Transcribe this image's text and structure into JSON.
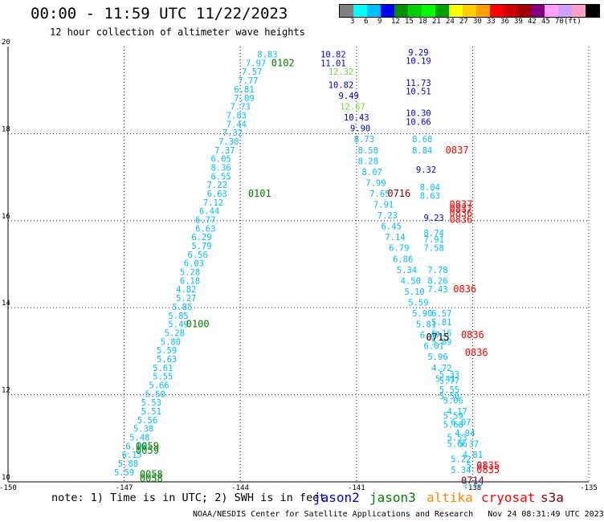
{
  "header": {
    "title": "00:00 - 11:59 UTC 11/22/2023",
    "subtitle": "12 hour collection of altimeter wave heights"
  },
  "color_scale": {
    "colors": [
      "#808080",
      "#00ffff",
      "#00bfff",
      "#0000ff",
      "#008f00",
      "#00cf00",
      "#00ff00",
      "#00a000",
      "#ffff00",
      "#ffcf00",
      "#ff9f00",
      "#ff0000",
      "#cf0000",
      "#a00000",
      "#800080",
      "#ff9fff",
      "#cfa0ff",
      "#ffa0c8",
      "#000000"
    ],
    "labels": [
      "3",
      "6",
      "9",
      "12",
      "15",
      "18",
      "21",
      "24",
      "27",
      "30",
      "33",
      "36",
      "39",
      "42",
      "45",
      "70",
      "(ft)"
    ]
  },
  "note": "note: 1) Time is in UTC; 2) SWH is in feet",
  "legend": [
    {
      "label": "jason2",
      "color": "#0000cc"
    },
    {
      "label": "jason3",
      "color": "#008000"
    },
    {
      "label": "altika",
      "color": "#ff8c00"
    },
    {
      "label": "cryosat",
      "color": "#ff0000"
    },
    {
      "label": "s3a",
      "color": "#8b0000"
    }
  ],
  "footer": "NOAA/NESDIS Center for Satellite Applications and Research   Nov 24 08:31:49 UTC 2023",
  "chart_data": {
    "type": "scatter",
    "title": "00:00 - 11:59 UTC 11/22/2023",
    "subtitle": "12 hour collection of altimeter wave heights",
    "xlim": [
      -150,
      -135
    ],
    "ylim": [
      10,
      20
    ],
    "x_ticks": [
      "-150",
      "-147",
      "-144",
      "-141",
      "-138",
      "-135"
    ],
    "y_ticks": [
      "10",
      "12",
      "14",
      "16",
      "18",
      "20"
    ],
    "grid": true,
    "wave_height_labels": [
      {
        "x": -143.3,
        "y": 19.75,
        "text": "8.83",
        "color": "#00bfff"
      },
      {
        "x": -143.6,
        "y": 19.55,
        "text": "7.97",
        "color": "#00bfff"
      },
      {
        "x": -143.7,
        "y": 19.35,
        "text": "7.57",
        "color": "#00bfff"
      },
      {
        "x": -143.8,
        "y": 19.15,
        "text": "7.77",
        "color": "#00bfff"
      },
      {
        "x": -143.9,
        "y": 18.95,
        "text": "6.81",
        "color": "#00bfff"
      },
      {
        "x": -143.9,
        "y": 18.75,
        "text": "7.09",
        "color": "#00bfff"
      },
      {
        "x": -144.0,
        "y": 18.55,
        "text": "7.73",
        "color": "#00bfff"
      },
      {
        "x": -144.1,
        "y": 18.35,
        "text": "7.83",
        "color": "#00bfff"
      },
      {
        "x": -144.1,
        "y": 18.15,
        "text": "7.44",
        "color": "#00bfff"
      },
      {
        "x": -144.2,
        "y": 17.95,
        "text": "7.32",
        "color": "#00bfff"
      },
      {
        "x": -144.3,
        "y": 17.75,
        "text": "7.30",
        "color": "#00bfff"
      },
      {
        "x": -144.4,
        "y": 17.55,
        "text": "7.37",
        "color": "#00bfff"
      },
      {
        "x": -144.5,
        "y": 17.35,
        "text": "6.05",
        "color": "#00bfff"
      },
      {
        "x": -144.5,
        "y": 17.15,
        "text": "8.36",
        "color": "#00bfff"
      },
      {
        "x": -144.5,
        "y": 16.95,
        "text": "6.55",
        "color": "#00bfff"
      },
      {
        "x": -144.6,
        "y": 16.75,
        "text": "7.22",
        "color": "#00bfff"
      },
      {
        "x": -144.6,
        "y": 16.55,
        "text": "6.63",
        "color": "#00bfff"
      },
      {
        "x": -144.7,
        "y": 16.35,
        "text": "7.12",
        "color": "#00bfff"
      },
      {
        "x": -144.8,
        "y": 16.15,
        "text": "6.44",
        "color": "#00bfff"
      },
      {
        "x": -144.9,
        "y": 15.95,
        "text": "6.77",
        "color": "#00bfff"
      },
      {
        "x": -144.9,
        "y": 15.75,
        "text": "6.63",
        "color": "#00bfff"
      },
      {
        "x": -145.0,
        "y": 15.55,
        "text": "6.29",
        "color": "#00bfff"
      },
      {
        "x": -145.0,
        "y": 15.35,
        "text": "5.79",
        "color": "#00bfff"
      },
      {
        "x": -145.1,
        "y": 15.15,
        "text": "6.56",
        "color": "#00bfff"
      },
      {
        "x": -145.2,
        "y": 14.95,
        "text": "6.03",
        "color": "#00bfff"
      },
      {
        "x": -145.3,
        "y": 14.75,
        "text": "5.28",
        "color": "#00bfff"
      },
      {
        "x": -145.3,
        "y": 14.55,
        "text": "6.18",
        "color": "#00bfff"
      },
      {
        "x": -145.4,
        "y": 14.35,
        "text": "4.82",
        "color": "#00bfff"
      },
      {
        "x": -145.4,
        "y": 14.15,
        "text": "5.27",
        "color": "#00bfff"
      },
      {
        "x": -145.5,
        "y": 13.95,
        "text": "5.85",
        "color": "#00bfff"
      },
      {
        "x": -145.6,
        "y": 13.75,
        "text": "5.85",
        "color": "#00bfff"
      },
      {
        "x": -145.6,
        "y": 13.55,
        "text": "5.49",
        "color": "#00bfff"
      },
      {
        "x": -145.7,
        "y": 13.35,
        "text": "5.28",
        "color": "#00bfff"
      },
      {
        "x": -145.8,
        "y": 13.15,
        "text": "5.80",
        "color": "#00bfff"
      },
      {
        "x": -145.9,
        "y": 12.95,
        "text": "5.59",
        "color": "#00bfff"
      },
      {
        "x": -145.9,
        "y": 12.75,
        "text": "5.63",
        "color": "#00bfff"
      },
      {
        "x": -146.0,
        "y": 12.55,
        "text": "5.61",
        "color": "#00bfff"
      },
      {
        "x": -146.0,
        "y": 12.35,
        "text": "5.55",
        "color": "#00bfff"
      },
      {
        "x": -146.1,
        "y": 12.15,
        "text": "5.66",
        "color": "#00bfff"
      },
      {
        "x": -146.2,
        "y": 11.95,
        "text": "5.50",
        "color": "#00bfff"
      },
      {
        "x": -146.3,
        "y": 11.75,
        "text": "5.53",
        "color": "#00bfff"
      },
      {
        "x": -146.3,
        "y": 11.55,
        "text": "5.51",
        "color": "#00bfff"
      },
      {
        "x": -146.4,
        "y": 11.35,
        "text": "5.56",
        "color": "#00bfff"
      },
      {
        "x": -146.5,
        "y": 11.15,
        "text": "5.38",
        "color": "#00bfff"
      },
      {
        "x": -146.6,
        "y": 10.95,
        "text": "5.48",
        "color": "#00bfff"
      },
      {
        "x": -146.7,
        "y": 10.75,
        "text": "6.16",
        "color": "#00bfff"
      },
      {
        "x": -146.8,
        "y": 10.55,
        "text": "6.15",
        "color": "#00bfff"
      },
      {
        "x": -146.9,
        "y": 10.35,
        "text": "5.88",
        "color": "#00bfff"
      },
      {
        "x": -147.0,
        "y": 10.15,
        "text": "5.59",
        "color": "#00bfff"
      },
      {
        "x": -141.6,
        "y": 19.75,
        "text": "10.82",
        "color": "#0000cc"
      },
      {
        "x": -141.6,
        "y": 19.55,
        "text": "11.01",
        "color": "#0000cc"
      },
      {
        "x": -141.4,
        "y": 19.35,
        "text": "12.32",
        "color": "#66dd33"
      },
      {
        "x": -141.4,
        "y": 19.05,
        "text": "10.82",
        "color": "#0000cc"
      },
      {
        "x": -141.2,
        "y": 18.8,
        "text": "9.49",
        "color": "#0000cc"
      },
      {
        "x": -141.1,
        "y": 18.55,
        "text": "12.67",
        "color": "#66dd33"
      },
      {
        "x": -141.0,
        "y": 18.3,
        "text": "10.43",
        "color": "#0000cc"
      },
      {
        "x": -140.9,
        "y": 18.05,
        "text": "9.90",
        "color": "#0000cc"
      },
      {
        "x": -140.8,
        "y": 17.8,
        "text": "8.73",
        "color": "#00bfff"
      },
      {
        "x": -140.7,
        "y": 17.55,
        "text": "8.58",
        "color": "#00bfff"
      },
      {
        "x": -140.7,
        "y": 17.3,
        "text": "8.28",
        "color": "#00bfff"
      },
      {
        "x": -140.6,
        "y": 17.05,
        "text": "8.07",
        "color": "#00bfff"
      },
      {
        "x": -140.5,
        "y": 16.8,
        "text": "7.99",
        "color": "#00bfff"
      },
      {
        "x": -140.4,
        "y": 16.55,
        "text": "7.65",
        "color": "#00bfff"
      },
      {
        "x": -140.3,
        "y": 16.3,
        "text": "7.91",
        "color": "#00bfff"
      },
      {
        "x": -140.2,
        "y": 16.05,
        "text": "7.23",
        "color": "#00bfff"
      },
      {
        "x": -140.1,
        "y": 15.8,
        "text": "6.45",
        "color": "#00bfff"
      },
      {
        "x": -140.0,
        "y": 15.55,
        "text": "7.14",
        "color": "#00bfff"
      },
      {
        "x": -139.9,
        "y": 15.3,
        "text": "6.79",
        "color": "#00bfff"
      },
      {
        "x": -139.8,
        "y": 15.05,
        "text": "6.86",
        "color": "#00bfff"
      },
      {
        "x": -139.7,
        "y": 14.8,
        "text": "5.34",
        "color": "#00bfff"
      },
      {
        "x": -139.6,
        "y": 14.55,
        "text": "4.50",
        "color": "#00bfff"
      },
      {
        "x": -139.5,
        "y": 14.3,
        "text": "5.10",
        "color": "#00bfff"
      },
      {
        "x": -139.4,
        "y": 14.05,
        "text": "5.59",
        "color": "#00bfff"
      },
      {
        "x": -139.3,
        "y": 13.8,
        "text": "5.90",
        "color": "#00bfff"
      },
      {
        "x": -139.2,
        "y": 13.55,
        "text": "5.81",
        "color": "#00bfff"
      },
      {
        "x": -139.1,
        "y": 13.3,
        "text": "6.47",
        "color": "#00bfff"
      },
      {
        "x": -139.0,
        "y": 13.05,
        "text": "6.01",
        "color": "#00bfff"
      },
      {
        "x": -138.9,
        "y": 12.8,
        "text": "5.96",
        "color": "#00bfff"
      },
      {
        "x": -138.8,
        "y": 12.55,
        "text": "4.72",
        "color": "#00bfff"
      },
      {
        "x": -138.7,
        "y": 12.3,
        "text": "5.41",
        "color": "#00bfff"
      },
      {
        "x": -138.6,
        "y": 12.05,
        "text": "5.55",
        "color": "#00bfff"
      },
      {
        "x": -138.5,
        "y": 11.8,
        "text": "5.06",
        "color": "#00bfff"
      },
      {
        "x": -138.4,
        "y": 11.55,
        "text": "4.17",
        "color": "#00bfff"
      },
      {
        "x": -138.3,
        "y": 11.3,
        "text": "6.07",
        "color": "#00bfff"
      },
      {
        "x": -138.2,
        "y": 11.05,
        "text": "4.94",
        "color": "#00bfff"
      },
      {
        "x": -138.1,
        "y": 10.8,
        "text": "5.37",
        "color": "#00bfff"
      },
      {
        "x": -138.0,
        "y": 10.55,
        "text": "4.81",
        "color": "#00bfff"
      },
      {
        "x": -137.9,
        "y": 10.3,
        "text": "5.07",
        "color": "#00bfff"
      },
      {
        "x": -139.4,
        "y": 19.8,
        "text": "9.29",
        "color": "#0000cc"
      },
      {
        "x": -139.4,
        "y": 19.6,
        "text": "10.19",
        "color": "#0000cc"
      },
      {
        "x": -139.4,
        "y": 19.1,
        "text": "11.73",
        "color": "#0000cc"
      },
      {
        "x": -139.4,
        "y": 18.9,
        "text": "10.51",
        "color": "#0000cc"
      },
      {
        "x": -139.4,
        "y": 18.4,
        "text": "10.30",
        "color": "#0000cc"
      },
      {
        "x": -139.4,
        "y": 18.2,
        "text": "10.66",
        "color": "#0000cc"
      },
      {
        "x": -139.3,
        "y": 17.8,
        "text": "8.68",
        "color": "#00bfff"
      },
      {
        "x": -139.3,
        "y": 17.55,
        "text": "8.84",
        "color": "#00bfff"
      },
      {
        "x": -139.2,
        "y": 17.1,
        "text": "9.32",
        "color": "#0000cc"
      },
      {
        "x": -139.1,
        "y": 16.7,
        "text": "8.04",
        "color": "#00bfff"
      },
      {
        "x": -139.1,
        "y": 16.5,
        "text": "8.63",
        "color": "#00bfff"
      },
      {
        "x": -139.0,
        "y": 16.0,
        "text": "9.23",
        "color": "#0000cc"
      },
      {
        "x": -139.0,
        "y": 15.65,
        "text": "8.74",
        "color": "#00bfff"
      },
      {
        "x": -139.0,
        "y": 15.5,
        "text": "7.91",
        "color": "#00bfff"
      },
      {
        "x": -139.0,
        "y": 15.3,
        "text": "7.58",
        "color": "#00bfff"
      },
      {
        "x": -138.9,
        "y": 14.8,
        "text": "7.78",
        "color": "#00bfff"
      },
      {
        "x": -138.9,
        "y": 14.55,
        "text": "8.26",
        "color": "#00bfff"
      },
      {
        "x": -138.9,
        "y": 14.35,
        "text": "7.43",
        "color": "#00bfff"
      },
      {
        "x": -138.8,
        "y": 13.8,
        "text": "6.57",
        "color": "#00bfff"
      },
      {
        "x": -138.8,
        "y": 13.6,
        "text": "5.81",
        "color": "#00bfff"
      },
      {
        "x": -138.8,
        "y": 13.35,
        "text": "6.16",
        "color": "#00bfff"
      },
      {
        "x": -138.8,
        "y": 13.15,
        "text": "5.89",
        "color": "#00bfff"
      },
      {
        "x": -138.6,
        "y": 12.4,
        "text": "5.33",
        "color": "#00bfff"
      },
      {
        "x": -138.6,
        "y": 12.25,
        "text": "5.77",
        "color": "#00bfff"
      },
      {
        "x": -138.6,
        "y": 11.9,
        "text": "5.56",
        "color": "#00bfff"
      },
      {
        "x": -138.5,
        "y": 11.45,
        "text": "5.59",
        "color": "#00bfff"
      },
      {
        "x": -138.5,
        "y": 11.25,
        "text": "5.68",
        "color": "#00bfff"
      },
      {
        "x": -138.4,
        "y": 10.95,
        "text": "5.53",
        "color": "#00bfff"
      },
      {
        "x": -138.4,
        "y": 10.8,
        "text": "5.66",
        "color": "#00bfff"
      },
      {
        "x": -138.3,
        "y": 10.45,
        "text": "5.22",
        "color": "#00bfff"
      },
      {
        "x": -138.3,
        "y": 10.2,
        "text": "5.34",
        "color": "#00bfff"
      },
      {
        "x": -138.0,
        "y": 9.9,
        "text": "5.25",
        "color": "#00bfff"
      }
    ],
    "pass_time_labels": [
      {
        "x": -143.2,
        "y": 19.55,
        "text": "0102",
        "color": "#008000"
      },
      {
        "x": -143.8,
        "y": 16.55,
        "text": "0101",
        "color": "#008000"
      },
      {
        "x": -145.4,
        "y": 13.55,
        "text": "0100",
        "color": "#008000"
      },
      {
        "x": -146.7,
        "y": 10.75,
        "text": "0059",
        "color": "#008000"
      },
      {
        "x": -146.7,
        "y": 10.65,
        "text": "0059",
        "color": "#008000"
      },
      {
        "x": -146.6,
        "y": 10.1,
        "text": "0058",
        "color": "#008000"
      },
      {
        "x": -146.6,
        "y": 10.0,
        "text": "0058",
        "color": "#008000"
      },
      {
        "x": -138.7,
        "y": 17.55,
        "text": "0837",
        "color": "#ff0000"
      },
      {
        "x": -140.2,
        "y": 16.55,
        "text": "0716",
        "color": "#8b0000"
      },
      {
        "x": -138.6,
        "y": 16.3,
        "text": "0837",
        "color": "#ff0000"
      },
      {
        "x": -138.6,
        "y": 16.2,
        "text": "0837",
        "color": "#ff0000"
      },
      {
        "x": -138.6,
        "y": 16.1,
        "text": "0836",
        "color": "#ff0000"
      },
      {
        "x": -138.6,
        "y": 15.95,
        "text": "0836",
        "color": "#ff0000"
      },
      {
        "x": -138.5,
        "y": 14.35,
        "text": "0836",
        "color": "#ff0000"
      },
      {
        "x": -139.2,
        "y": 13.25,
        "text": "0715",
        "color": "#000000"
      },
      {
        "x": -138.3,
        "y": 13.3,
        "text": "0836",
        "color": "#ff0000"
      },
      {
        "x": -138.2,
        "y": 12.9,
        "text": "0836",
        "color": "#ff0000"
      },
      {
        "x": -137.9,
        "y": 10.3,
        "text": "0835",
        "color": "#ff0000"
      },
      {
        "x": -137.9,
        "y": 10.2,
        "text": "0835",
        "color": "#ff0000"
      },
      {
        "x": -138.3,
        "y": 9.95,
        "text": "0714",
        "color": "#8b0000"
      }
    ]
  }
}
